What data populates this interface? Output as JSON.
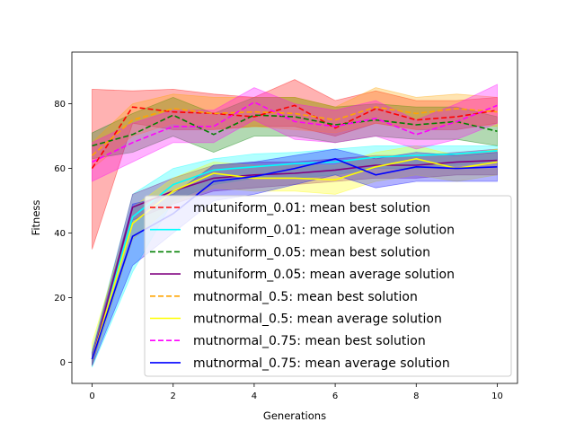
{
  "chart_data": {
    "type": "line",
    "xlabel": "Generations",
    "ylabel": "Fitness",
    "xlim": [
      -0.5,
      10.5
    ],
    "ylim": [
      -6.5,
      96
    ],
    "x_ticks": [
      0,
      2,
      4,
      6,
      8,
      10
    ],
    "y_ticks": [
      0,
      20,
      40,
      60,
      80
    ],
    "grid": false,
    "legend_position": "lower-right",
    "x": [
      0,
      1,
      2,
      3,
      4,
      5,
      6,
      7,
      8,
      9,
      10
    ],
    "series": [
      {
        "name": "mutuniform_0.01: mean best solution",
        "color": "#ff0000",
        "style": "dashed",
        "mean": [
          60,
          79,
          77.5,
          77,
          76,
          79.5,
          72.5,
          78.5,
          75,
          76,
          78
        ],
        "lower": [
          35,
          74,
          72,
          72,
          73,
          73,
          70,
          74,
          72,
          72,
          74
        ],
        "upper": [
          84.5,
          84,
          84.5,
          83,
          82,
          87.5,
          81,
          84,
          81,
          81,
          82
        ]
      },
      {
        "name": "mutuniform_0.01: mean average solution",
        "color": "#00ffff",
        "style": "solid",
        "mean": [
          1,
          45,
          55,
          59.5,
          60.5,
          61.5,
          62,
          63.5,
          64,
          64.5,
          65.5
        ],
        "lower": [
          -1.5,
          28,
          50,
          55,
          57,
          57,
          58,
          60,
          60,
          61,
          62
        ],
        "upper": [
          4,
          52,
          60,
          63,
          64.5,
          65,
          66,
          67,
          67,
          67,
          67
        ]
      },
      {
        "name": "mutuniform_0.05: mean best solution",
        "color": "#008000",
        "style": "dashed",
        "mean": [
          67,
          70.5,
          76.5,
          70.5,
          76.5,
          76,
          73.5,
          75,
          73.5,
          74.5,
          71.5
        ],
        "lower": [
          63,
          65,
          70,
          65,
          70,
          70,
          68,
          70,
          69,
          69,
          67
        ],
        "upper": [
          71,
          77,
          82,
          77,
          82,
          82,
          79,
          80,
          79,
          79,
          76
        ]
      },
      {
        "name": "mutuniform_0.05: mean average solution",
        "color": "#800080",
        "style": "solid",
        "mean": [
          1,
          48,
          53,
          57,
          58,
          58.5,
          59.5,
          61,
          61,
          62,
          62.5
        ],
        "lower": [
          -1,
          44,
          49,
          53,
          54,
          55,
          56,
          57,
          57,
          58,
          58
        ],
        "upper": [
          3,
          52,
          57,
          61,
          62,
          62,
          63,
          64,
          64,
          65,
          66
        ]
      },
      {
        "name": "mutnormal_0.5: mean best solution",
        "color": "#ffa500",
        "style": "dashed",
        "mean": [
          64,
          75,
          78.5,
          77,
          77.5,
          77,
          75,
          79,
          77,
          78.5,
          77.5
        ],
        "lower": [
          60,
          70,
          74,
          72,
          73,
          72,
          71,
          74,
          72,
          74,
          73
        ],
        "upper": [
          68,
          80,
          83,
          82,
          82,
          82,
          79,
          85,
          82,
          83,
          82
        ]
      },
      {
        "name": "mutnormal_0.5: mean average solution",
        "color": "#ffff00",
        "style": "solid",
        "mean": [
          1,
          43,
          53,
          58.5,
          57,
          57,
          56.5,
          60.5,
          63,
          60,
          62
        ],
        "lower": [
          -1,
          38,
          49,
          54,
          53,
          53,
          52,
          56,
          58,
          56,
          58
        ],
        "upper": [
          6,
          48,
          57,
          62,
          61,
          61,
          61,
          65,
          67,
          64,
          66
        ]
      },
      {
        "name": "mutnormal_0.75: mean best solution",
        "color": "#ff00ff",
        "style": "dashed",
        "mean": [
          62,
          68,
          73,
          73,
          80.5,
          74.5,
          73,
          75.5,
          70.5,
          74.5,
          79.5
        ],
        "lower": [
          56,
          62,
          68,
          68,
          75,
          69,
          68,
          70,
          66,
          69,
          74
        ],
        "upper": [
          68,
          74,
          78,
          78,
          85,
          80,
          78,
          81,
          75,
          80,
          86
        ]
      },
      {
        "name": "mutnormal_0.75: mean average solution",
        "color": "#0000ff",
        "style": "solid",
        "mean": [
          1,
          39,
          46,
          56,
          57.5,
          60,
          63,
          58,
          60.5,
          60,
          60.5
        ],
        "lower": [
          -1,
          30,
          40,
          50,
          52,
          55,
          58,
          54,
          56,
          56,
          56
        ],
        "upper": [
          3,
          49,
          52,
          61,
          62,
          64,
          66,
          63,
          65,
          64,
          65
        ]
      }
    ]
  }
}
